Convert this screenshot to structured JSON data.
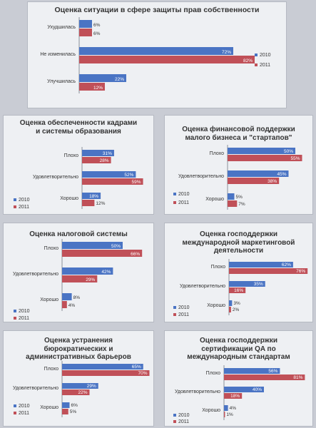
{
  "colors": {
    "s2010": "#4a74c4",
    "s2011": "#c05058",
    "axis": "#8a8f99",
    "text": "#333333"
  },
  "chart_data": [
    {
      "type": "bar",
      "title": "Оценка ситуации в сфере защиты прав собственности",
      "categories": [
        "Ухудшилась",
        "Не изменилась",
        "Улучшилась"
      ],
      "series": [
        {
          "name": "2010",
          "values": [
            6,
            72,
            22
          ]
        },
        {
          "name": "2011",
          "values": [
            6,
            82,
            12
          ]
        }
      ],
      "xlim": [
        0,
        100
      ],
      "legend": "right"
    },
    {
      "type": "bar",
      "title": "Оценка обеспеченности кадрами и системы образования",
      "categories": [
        "Плохо",
        "Удовлетворительно",
        "Хорошо"
      ],
      "series": [
        {
          "name": "2010",
          "values": [
            31,
            52,
            18
          ]
        },
        {
          "name": "2011",
          "values": [
            28,
            59,
            12
          ]
        }
      ],
      "xlim": [
        0,
        100
      ],
      "legend": "bottom-left"
    },
    {
      "type": "bar",
      "title": "Оценка финансовой поддержки малого бизнеса и \"стартапов\"",
      "categories": [
        "Плохо",
        "Удовлетворительно",
        "Хорошо"
      ],
      "series": [
        {
          "name": "2010",
          "values": [
            50,
            45,
            5
          ]
        },
        {
          "name": "2011",
          "values": [
            55,
            38,
            7
          ]
        }
      ],
      "xlim": [
        0,
        100
      ],
      "legend": "bottom-left"
    },
    {
      "type": "bar",
      "title": "Оценка налоговой системы",
      "categories": [
        "Плохо",
        "Удовлетворительно",
        "Хорошо"
      ],
      "series": [
        {
          "name": "2010",
          "values": [
            50,
            42,
            8
          ]
        },
        {
          "name": "2011",
          "values": [
            66,
            29,
            4
          ]
        }
      ],
      "xlim": [
        0,
        100
      ],
      "legend": "bottom-left"
    },
    {
      "type": "bar",
      "title": "Оценка господдержки международной маркетинговой деятельности",
      "categories": [
        "Плохо",
        "Удовлетворительно",
        "Хорошо"
      ],
      "series": [
        {
          "name": "2010",
          "values": [
            62,
            35,
            3
          ]
        },
        {
          "name": "2011",
          "values": [
            76,
            16,
            2
          ]
        }
      ],
      "xlim": [
        0,
        100
      ],
      "legend": "bottom-left"
    },
    {
      "type": "bar",
      "title": "Оценка устранения бюрократических и административных барьеров",
      "categories": [
        "Плохо",
        "Удовлетворительно",
        "Хорошо"
      ],
      "series": [
        {
          "name": "2010",
          "values": [
            65,
            29,
            6
          ]
        },
        {
          "name": "2011",
          "values": [
            70,
            22,
            5
          ]
        }
      ],
      "xlim": [
        0,
        100
      ],
      "legend": "bottom-left"
    },
    {
      "type": "bar",
      "title": "Оценка господдержки сертификации QA по международным стандартам",
      "categories": [
        "Плохо",
        "Удовлетворительно",
        "Хорошо"
      ],
      "series": [
        {
          "name": "2010",
          "values": [
            56,
            40,
            4
          ]
        },
        {
          "name": "2011",
          "values": [
            81,
            18,
            1
          ]
        }
      ],
      "xlim": [
        0,
        100
      ],
      "legend": "bottom-left"
    }
  ]
}
